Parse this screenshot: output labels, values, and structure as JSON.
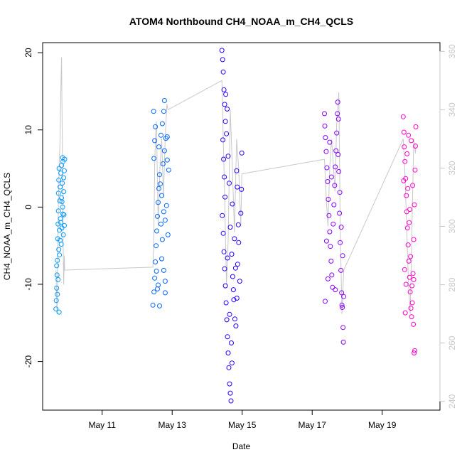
{
  "chart_data": {
    "type": "scatter",
    "title": "ATOM4 Northbound CH4_NOAA_m_CH4_QCLS",
    "xlabel": "Date",
    "ylabel": "CH4_NOAA_m_CH4_QCLS",
    "x_unit": "day-of-May",
    "xlim": [
      9.3,
      20.65
    ],
    "ylim": [
      -26.3,
      21.3
    ],
    "y2lim": [
      237,
      363
    ],
    "x_ticks": [
      {
        "value": 11,
        "label": "May 11"
      },
      {
        "value": 13,
        "label": "May 13"
      },
      {
        "value": 15,
        "label": "May 15"
      },
      {
        "value": 17,
        "label": "May 17"
      },
      {
        "value": 19,
        "label": "May 19"
      }
    ],
    "y_ticks": [
      {
        "value": 20,
        "label": "20"
      },
      {
        "value": 10,
        "label": "10"
      },
      {
        "value": 0,
        "label": "0"
      },
      {
        "value": -10,
        "label": "-10"
      },
      {
        "value": -20,
        "label": "-20"
      }
    ],
    "y2_ticks": [
      {
        "value": 360,
        "label": "360"
      },
      {
        "value": 340,
        "label": "340"
      },
      {
        "value": 320,
        "label": "320"
      },
      {
        "value": 300,
        "label": "300"
      },
      {
        "value": 280,
        "label": "280"
      },
      {
        "value": 260,
        "label": "260"
      },
      {
        "value": 240,
        "label": "240"
      }
    ],
    "grid": false,
    "series": [
      {
        "color": "#0099ff",
        "points": [
          [
            9.68,
            -13.2
          ],
          [
            9.7,
            -10.5
          ],
          [
            9.71,
            -8.8
          ],
          [
            9.72,
            -6.9
          ],
          [
            9.73,
            -4.1
          ],
          [
            9.74,
            -2.2
          ],
          [
            9.75,
            -0.5
          ],
          [
            9.75,
            1.8
          ],
          [
            9.76,
            3.5
          ],
          [
            9.77,
            5.0
          ],
          [
            9.78,
            -3.0
          ],
          [
            9.79,
            0.8
          ],
          [
            9.8,
            2.6
          ],
          [
            9.81,
            -1.5
          ],
          [
            9.82,
            4.4
          ],
          [
            9.83,
            -4.8
          ],
          [
            9.84,
            1.2
          ],
          [
            9.85,
            -2.7
          ],
          [
            9.86,
            3.1
          ],
          [
            9.87,
            0.0
          ],
          [
            9.88,
            5.9
          ],
          [
            9.89,
            -3.6
          ],
          [
            9.9,
            2.0
          ],
          [
            9.91,
            -1.0
          ],
          [
            9.92,
            4.7
          ],
          [
            9.93,
            6.2
          ],
          [
            9.69,
            -12.1
          ],
          [
            9.7,
            -7.6
          ],
          [
            9.72,
            -11.3
          ],
          [
            9.74,
            -9.4
          ],
          [
            9.76,
            -5.5
          ],
          [
            9.78,
            -6.2
          ],
          [
            9.8,
            -4.3
          ],
          [
            9.82,
            -2.0
          ],
          [
            9.85,
            0.7
          ],
          [
            9.88,
            -0.9
          ],
          [
            9.9,
            3.8
          ],
          [
            9.92,
            -2.4
          ],
          [
            9.77,
            -13.6
          ],
          [
            9.84,
            5.4
          ],
          [
            9.87,
            6.4
          ]
        ]
      },
      {
        "color": "#0066ff",
        "points": [
          [
            12.45,
            -12.7
          ],
          [
            12.48,
            -11.0
          ],
          [
            12.5,
            -9.2
          ],
          [
            12.52,
            -7.1
          ],
          [
            12.54,
            -5.0
          ],
          [
            12.56,
            -3.1
          ],
          [
            12.58,
            -1.2
          ],
          [
            12.6,
            0.6
          ],
          [
            12.62,
            2.4
          ],
          [
            12.64,
            4.2
          ],
          [
            12.48,
            6.3
          ],
          [
            12.5,
            8.6
          ],
          [
            12.52,
            10.4
          ],
          [
            12.47,
            12.4
          ],
          [
            12.55,
            -8.3
          ],
          [
            12.6,
            -10.1
          ],
          [
            12.66,
            3.0
          ],
          [
            12.68,
            -2.2
          ],
          [
            12.7,
            1.5
          ],
          [
            12.72,
            -4.2
          ],
          [
            12.74,
            5.6
          ],
          [
            12.76,
            -0.6
          ],
          [
            12.78,
            7.3
          ],
          [
            12.8,
            -1.7
          ],
          [
            12.82,
            8.9
          ],
          [
            12.84,
            0.2
          ],
          [
            12.86,
            6.1
          ],
          [
            12.88,
            -3.6
          ],
          [
            12.9,
            4.8
          ],
          [
            12.7,
            -6.7
          ],
          [
            12.76,
            -8.2
          ],
          [
            12.8,
            -9.6
          ],
          [
            12.8,
            -11.1
          ],
          [
            12.78,
            13.8
          ],
          [
            12.76,
            12.4
          ],
          [
            12.68,
            9.3
          ],
          [
            12.72,
            10.8
          ],
          [
            12.86,
            9.1
          ],
          [
            12.64,
            -12.8
          ],
          [
            12.58,
            -10.6
          ],
          [
            12.62,
            7.8
          ]
        ]
      },
      {
        "color": "#2200ff",
        "points": [
          [
            14.42,
            20.3
          ],
          [
            14.44,
            19.1
          ],
          [
            14.46,
            17.5
          ],
          [
            14.48,
            15.2
          ],
          [
            14.5,
            13.3
          ],
          [
            14.52,
            11.1
          ],
          [
            14.45,
            8.7
          ],
          [
            14.47,
            6.2
          ],
          [
            14.49,
            3.9
          ],
          [
            14.51,
            1.3
          ],
          [
            14.43,
            -1.1
          ],
          [
            14.46,
            -3.4
          ],
          [
            14.48,
            -5.8
          ],
          [
            14.5,
            -8.0
          ],
          [
            14.52,
            -10.2
          ],
          [
            14.54,
            -12.4
          ],
          [
            14.56,
            -14.6
          ],
          [
            14.58,
            -16.8
          ],
          [
            14.6,
            -18.9
          ],
          [
            14.62,
            -20.8
          ],
          [
            14.64,
            -22.9
          ],
          [
            14.66,
            -24.1
          ],
          [
            14.68,
            -25.1
          ],
          [
            14.55,
            9.5
          ],
          [
            14.57,
            12.7
          ],
          [
            14.53,
            14.6
          ],
          [
            14.6,
            6.6
          ],
          [
            14.63,
            3.1
          ],
          [
            14.66,
            -2.6
          ],
          [
            14.7,
            -6.1
          ],
          [
            14.73,
            -9.0
          ],
          [
            14.76,
            -12.0
          ],
          [
            14.79,
            -14.5
          ],
          [
            14.82,
            -15.4
          ],
          [
            14.85,
            -11.8
          ],
          [
            14.87,
            -7.4
          ],
          [
            14.89,
            -2.3
          ],
          [
            14.86,
            2.6
          ],
          [
            14.84,
            4.7
          ],
          [
            14.9,
            -4.6
          ],
          [
            14.93,
            -9.6
          ],
          [
            14.96,
            -0.8
          ],
          [
            14.98,
            2.3
          ],
          [
            14.99,
            7.0
          ],
          [
            14.72,
            0.4
          ],
          [
            14.78,
            -4.1
          ],
          [
            14.81,
            -7.9
          ],
          [
            14.75,
            -10.7
          ],
          [
            14.69,
            -17.6
          ],
          [
            14.58,
            -6.6
          ],
          [
            14.64,
            -13.9
          ],
          [
            14.71,
            -20.2
          ]
        ]
      },
      {
        "color": "#8800ff",
        "points": [
          [
            17.35,
            12.1
          ],
          [
            17.36,
            10.5
          ],
          [
            17.38,
            9.0
          ],
          [
            17.4,
            7.2
          ],
          [
            17.42,
            5.1
          ],
          [
            17.44,
            3.3
          ],
          [
            17.46,
            1.0
          ],
          [
            17.48,
            -1.1
          ],
          [
            17.5,
            -3.2
          ],
          [
            17.52,
            -5.1
          ],
          [
            17.54,
            -7.0
          ],
          [
            17.56,
            -8.8
          ],
          [
            17.58,
            -10.4
          ],
          [
            17.37,
            -12.2
          ],
          [
            17.45,
            -9.3
          ],
          [
            17.6,
            -2.2
          ],
          [
            17.62,
            0.3
          ],
          [
            17.64,
            2.8
          ],
          [
            17.66,
            5.2
          ],
          [
            17.68,
            7.3
          ],
          [
            17.7,
            9.6
          ],
          [
            17.72,
            12.1
          ],
          [
            17.73,
            13.6
          ],
          [
            17.75,
            11.4
          ],
          [
            17.76,
            4.6
          ],
          [
            17.78,
            -0.8
          ],
          [
            17.8,
            -4.6
          ],
          [
            17.82,
            -8.2
          ],
          [
            17.84,
            -11.1
          ],
          [
            17.85,
            -12.7
          ],
          [
            17.86,
            -13.0
          ],
          [
            17.88,
            -15.6
          ],
          [
            17.89,
            -17.5
          ],
          [
            17.9,
            -11.6
          ],
          [
            17.87,
            -6.3
          ],
          [
            17.83,
            -2.6
          ],
          [
            17.79,
            1.9
          ],
          [
            17.74,
            6.8
          ],
          [
            17.66,
            -10.7
          ],
          [
            17.55,
            3.9
          ],
          [
            17.5,
            8.4
          ],
          [
            17.41,
            -4.4
          ]
        ]
      },
      {
        "color": "#ff00cc",
        "points": [
          [
            19.6,
            11.7
          ],
          [
            19.62,
            9.7
          ],
          [
            19.63,
            7.8
          ],
          [
            19.65,
            5.9
          ],
          [
            19.67,
            3.7
          ],
          [
            19.69,
            1.5
          ],
          [
            19.7,
            -0.6
          ],
          [
            19.72,
            -2.7
          ],
          [
            19.74,
            -4.9
          ],
          [
            19.76,
            -7.0
          ],
          [
            19.78,
            -9.1
          ],
          [
            19.8,
            -11.0
          ],
          [
            19.82,
            -13.1
          ],
          [
            19.84,
            -14.2
          ],
          [
            19.86,
            -12.4
          ],
          [
            19.88,
            -8.6
          ],
          [
            19.9,
            -4.2
          ],
          [
            19.92,
            0.3
          ],
          [
            19.94,
            4.8
          ],
          [
            19.95,
            7.9
          ],
          [
            19.96,
            10.4
          ],
          [
            19.93,
            -18.6
          ],
          [
            19.91,
            -18.9
          ],
          [
            19.89,
            -15.2
          ],
          [
            19.85,
            -10.2
          ],
          [
            19.81,
            -6.4
          ],
          [
            19.77,
            -2.0
          ],
          [
            19.73,
            2.4
          ],
          [
            19.71,
            6.9
          ],
          [
            19.68,
            -10.0
          ],
          [
            19.66,
            -13.7
          ],
          [
            19.64,
            -8.1
          ],
          [
            19.61,
            3.4
          ],
          [
            19.75,
            9.3
          ],
          [
            19.83,
            8.6
          ],
          [
            19.79,
            -0.3
          ],
          [
            19.87,
            2.8
          ],
          [
            19.9,
            -9.4
          ]
        ]
      }
    ],
    "secondary_line": {
      "color": "#c8c8c8",
      "points": [
        [
          9.68,
          285
        ],
        [
          9.71,
          270
        ],
        [
          9.74,
          300
        ],
        [
          9.77,
          320
        ],
        [
          9.8,
          330
        ],
        [
          9.82,
          347
        ],
        [
          9.84,
          358
        ],
        [
          9.86,
          330
        ],
        [
          9.88,
          300
        ],
        [
          9.9,
          280
        ],
        [
          9.92,
          290
        ],
        [
          9.93,
          285
        ],
        [
          12.45,
          286
        ],
        [
          12.48,
          300
        ],
        [
          12.5,
          320
        ],
        [
          12.52,
          330
        ],
        [
          12.55,
          336
        ],
        [
          12.6,
          300
        ],
        [
          12.65,
          320
        ],
        [
          12.7,
          330
        ],
        [
          12.75,
          310
        ],
        [
          12.8,
          330
        ],
        [
          12.85,
          342
        ],
        [
          12.88,
          340
        ],
        [
          14.42,
          350
        ],
        [
          14.46,
          330
        ],
        [
          14.5,
          310
        ],
        [
          14.55,
          280
        ],
        [
          14.6,
          295
        ],
        [
          14.66,
          340
        ],
        [
          14.72,
          320
        ],
        [
          14.78,
          298
        ],
        [
          14.84,
          330
        ],
        [
          14.9,
          320
        ],
        [
          14.96,
          300
        ],
        [
          14.99,
          318
        ],
        [
          17.35,
          323
        ],
        [
          17.4,
          310
        ],
        [
          17.45,
          300
        ],
        [
          17.5,
          320
        ],
        [
          17.55,
          330
        ],
        [
          17.6,
          322
        ],
        [
          17.65,
          312
        ],
        [
          17.7,
          335
        ],
        [
          17.76,
          346
        ],
        [
          17.8,
          300
        ],
        [
          17.85,
          270
        ],
        [
          17.9,
          285
        ],
        [
          19.6,
          330
        ],
        [
          19.65,
          318
        ],
        [
          19.7,
          300
        ],
        [
          19.75,
          280
        ],
        [
          19.8,
          270
        ],
        [
          19.85,
          300
        ],
        [
          19.9,
          330
        ],
        [
          19.95,
          325
        ],
        [
          19.96,
          328
        ]
      ]
    }
  }
}
